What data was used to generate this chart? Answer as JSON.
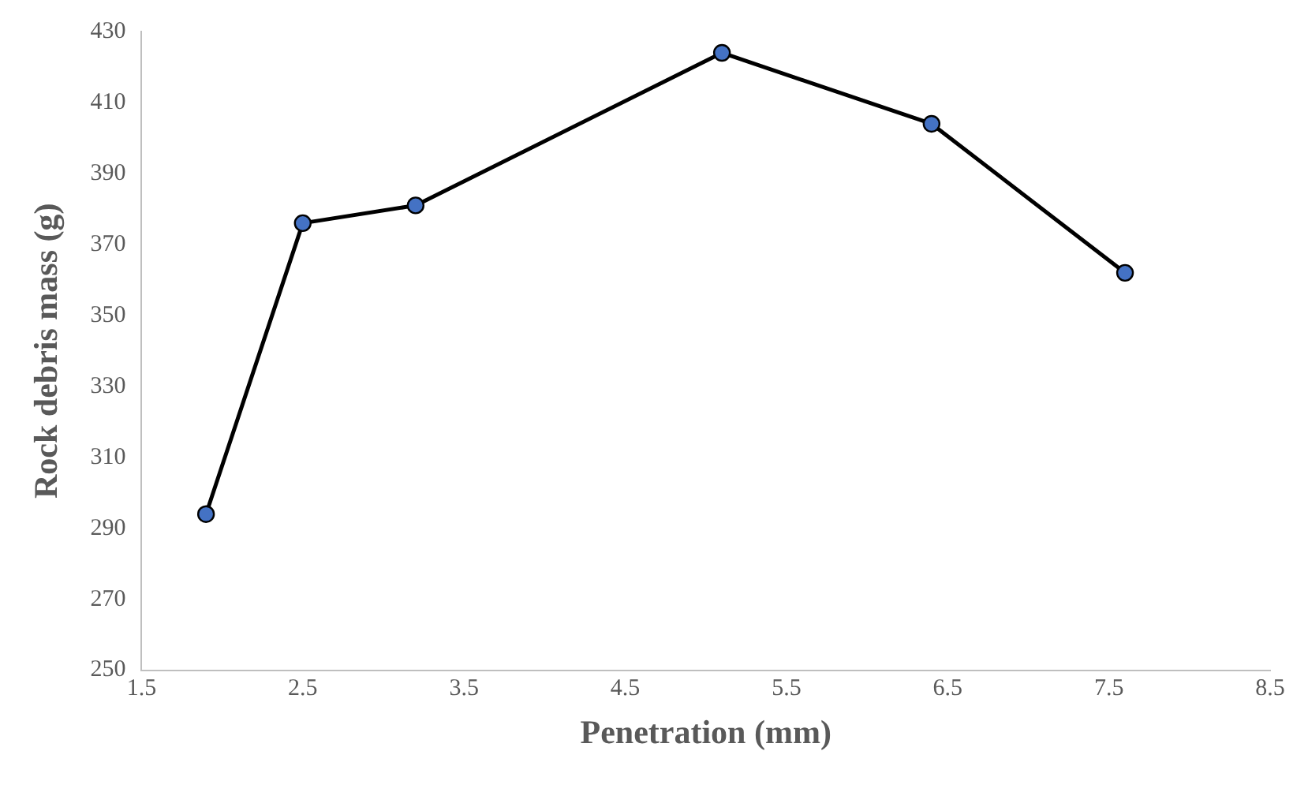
{
  "chart_data": {
    "type": "line",
    "xlabel": "Penetration (mm)",
    "ylabel": "Rock debris mass (g)",
    "x": [
      1.9,
      2.5,
      3.2,
      5.1,
      6.4,
      7.6
    ],
    "series": [
      {
        "color": "#4472c4",
        "values": [
          294,
          376,
          381,
          424,
          404,
          362
        ]
      }
    ],
    "xlim": [
      1.5,
      8.5
    ],
    "xticks": [
      {
        "value": 1.5,
        "label": "1.5"
      },
      {
        "value": 2.5,
        "label": "2.5"
      },
      {
        "value": 3.5,
        "label": "3.5"
      },
      {
        "value": 4.5,
        "label": "4.5"
      },
      {
        "value": 5.5,
        "label": "5.5"
      },
      {
        "value": 6.5,
        "label": "6.5"
      },
      {
        "value": 7.5,
        "label": "7.5"
      },
      {
        "value": 8.5,
        "label": "8.5"
      }
    ],
    "ylim": [
      250,
      430
    ],
    "yticks": [
      250,
      270,
      290,
      310,
      330,
      350,
      370,
      390,
      410,
      430
    ],
    "grid": false,
    "legend": false,
    "marker": "circle",
    "line_style": "solid"
  }
}
